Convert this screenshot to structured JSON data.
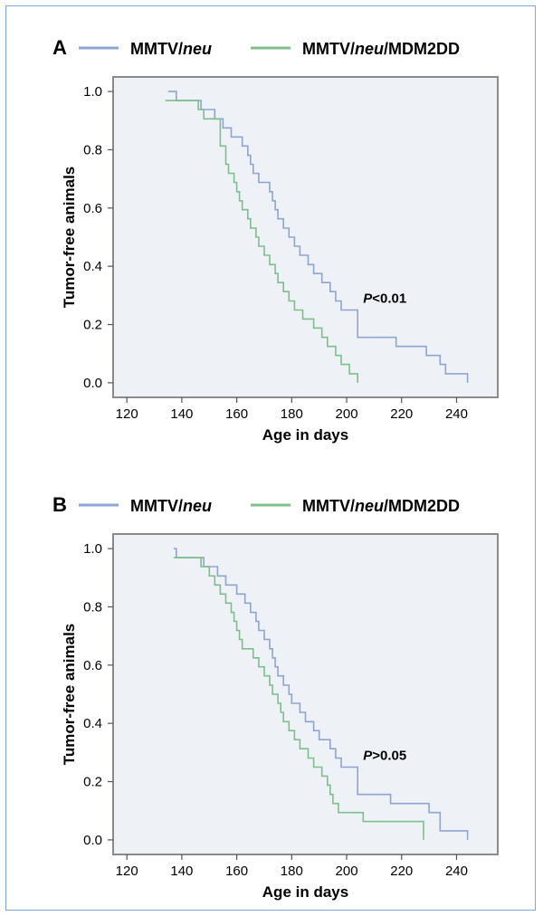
{
  "chart_data": [
    {
      "type": "line",
      "panel_label": "A",
      "xlabel": "Age in days",
      "ylabel": "Tumor-free animals",
      "xlim": [
        115,
        255
      ],
      "ylim": [
        -0.05,
        1.05
      ],
      "xticks": [
        120,
        140,
        160,
        180,
        200,
        220,
        240
      ],
      "yticks": [
        "0.0",
        "0.2",
        "0.4",
        "0.6",
        "0.8",
        "1.0"
      ],
      "grid": false,
      "legend_position": "top",
      "annotation": {
        "italic": "P",
        "rest": "<0.01",
        "x": 206,
        "y": 0.29
      },
      "series": [
        {
          "name_parts": [
            "MMTV/",
            "neu",
            ""
          ],
          "color": "#8ea4d2",
          "points": [
            [
              135,
              1.0
            ],
            [
              138,
              1.0
            ],
            [
              138,
              0.969
            ],
            [
              147,
              0.969
            ],
            [
              147,
              0.938
            ],
            [
              152,
              0.938
            ],
            [
              152,
              0.906
            ],
            [
              155,
              0.906
            ],
            [
              155,
              0.875
            ],
            [
              158,
              0.875
            ],
            [
              158,
              0.844
            ],
            [
              162,
              0.844
            ],
            [
              162,
              0.813
            ],
            [
              164,
              0.813
            ],
            [
              164,
              0.781
            ],
            [
              165,
              0.781
            ],
            [
              165,
              0.75
            ],
            [
              166,
              0.75
            ],
            [
              166,
              0.719
            ],
            [
              168,
              0.719
            ],
            [
              168,
              0.688
            ],
            [
              172,
              0.688
            ],
            [
              172,
              0.656
            ],
            [
              173,
              0.656
            ],
            [
              173,
              0.625
            ],
            [
              174,
              0.625
            ],
            [
              174,
              0.594
            ],
            [
              175,
              0.594
            ],
            [
              175,
              0.563
            ],
            [
              177,
              0.563
            ],
            [
              177,
              0.531
            ],
            [
              179,
              0.531
            ],
            [
              179,
              0.5
            ],
            [
              181,
              0.5
            ],
            [
              181,
              0.469
            ],
            [
              183,
              0.469
            ],
            [
              183,
              0.438
            ],
            [
              186,
              0.438
            ],
            [
              186,
              0.406
            ],
            [
              188,
              0.406
            ],
            [
              188,
              0.375
            ],
            [
              191,
              0.375
            ],
            [
              191,
              0.344
            ],
            [
              194,
              0.344
            ],
            [
              194,
              0.313
            ],
            [
              196,
              0.313
            ],
            [
              196,
              0.281
            ],
            [
              198,
              0.281
            ],
            [
              198,
              0.25
            ],
            [
              204,
              0.25
            ],
            [
              204,
              0.156
            ],
            [
              218,
              0.156
            ],
            [
              218,
              0.125
            ],
            [
              229,
              0.125
            ],
            [
              229,
              0.094
            ],
            [
              234,
              0.094
            ],
            [
              234,
              0.063
            ],
            [
              236,
              0.063
            ],
            [
              236,
              0.031
            ],
            [
              244,
              0.031
            ],
            [
              244,
              0.0
            ]
          ]
        },
        {
          "name_parts": [
            "MMTV/",
            "neu",
            "/MDM2DD"
          ],
          "color": "#7dbf8a",
          "points": [
            [
              134,
              0.969
            ],
            [
              146,
              0.969
            ],
            [
              146,
              0.938
            ],
            [
              148,
              0.938
            ],
            [
              148,
              0.906
            ],
            [
              154,
              0.906
            ],
            [
              154,
              0.813
            ],
            [
              156,
              0.813
            ],
            [
              156,
              0.75
            ],
            [
              157,
              0.75
            ],
            [
              157,
              0.719
            ],
            [
              159,
              0.719
            ],
            [
              159,
              0.688
            ],
            [
              160,
              0.688
            ],
            [
              160,
              0.656
            ],
            [
              161,
              0.656
            ],
            [
              161,
              0.625
            ],
            [
              162,
              0.625
            ],
            [
              162,
              0.594
            ],
            [
              164,
              0.594
            ],
            [
              164,
              0.563
            ],
            [
              165,
              0.563
            ],
            [
              165,
              0.531
            ],
            [
              167,
              0.531
            ],
            [
              167,
              0.5
            ],
            [
              168,
              0.5
            ],
            [
              168,
              0.469
            ],
            [
              170,
              0.469
            ],
            [
              170,
              0.438
            ],
            [
              172,
              0.438
            ],
            [
              172,
              0.406
            ],
            [
              174,
              0.406
            ],
            [
              174,
              0.375
            ],
            [
              175,
              0.375
            ],
            [
              175,
              0.344
            ],
            [
              177,
              0.344
            ],
            [
              177,
              0.313
            ],
            [
              179,
              0.313
            ],
            [
              179,
              0.281
            ],
            [
              181,
              0.281
            ],
            [
              181,
              0.25
            ],
            [
              184,
              0.25
            ],
            [
              184,
              0.219
            ],
            [
              188,
              0.219
            ],
            [
              188,
              0.188
            ],
            [
              191,
              0.188
            ],
            [
              191,
              0.156
            ],
            [
              193,
              0.156
            ],
            [
              193,
              0.125
            ],
            [
              196,
              0.125
            ],
            [
              196,
              0.094
            ],
            [
              198,
              0.094
            ],
            [
              198,
              0.063
            ],
            [
              201,
              0.063
            ],
            [
              201,
              0.031
            ],
            [
              204,
              0.031
            ],
            [
              204,
              0.0
            ]
          ]
        }
      ]
    },
    {
      "type": "line",
      "panel_label": "B",
      "xlabel": "Age in days",
      "ylabel": "Tumor-free animals",
      "xlim": [
        115,
        255
      ],
      "ylim": [
        -0.05,
        1.05
      ],
      "xticks": [
        120,
        140,
        160,
        180,
        200,
        220,
        240
      ],
      "yticks": [
        "0.0",
        "0.2",
        "0.4",
        "0.6",
        "0.8",
        "1.0"
      ],
      "grid": false,
      "legend_position": "top",
      "annotation": {
        "italic": "P",
        "rest": ">0.05",
        "x": 206,
        "y": 0.29
      },
      "series": [
        {
          "name_parts": [
            "MMTV/",
            "neu",
            ""
          ],
          "color": "#8ea4d2",
          "points": [
            [
              137,
              1.0
            ],
            [
              138,
              1.0
            ],
            [
              138,
              0.969
            ],
            [
              148,
              0.969
            ],
            [
              148,
              0.938
            ],
            [
              153,
              0.938
            ],
            [
              153,
              0.906
            ],
            [
              156,
              0.906
            ],
            [
              156,
              0.875
            ],
            [
              160,
              0.875
            ],
            [
              160,
              0.844
            ],
            [
              163,
              0.844
            ],
            [
              163,
              0.813
            ],
            [
              165,
              0.813
            ],
            [
              165,
              0.781
            ],
            [
              167,
              0.781
            ],
            [
              167,
              0.75
            ],
            [
              168,
              0.75
            ],
            [
              168,
              0.719
            ],
            [
              170,
              0.719
            ],
            [
              170,
              0.688
            ],
            [
              172,
              0.688
            ],
            [
              172,
              0.656
            ],
            [
              173,
              0.656
            ],
            [
              173,
              0.625
            ],
            [
              174,
              0.625
            ],
            [
              174,
              0.594
            ],
            [
              175,
              0.594
            ],
            [
              175,
              0.563
            ],
            [
              177,
              0.563
            ],
            [
              177,
              0.531
            ],
            [
              179,
              0.531
            ],
            [
              179,
              0.5
            ],
            [
              180,
              0.5
            ],
            [
              180,
              0.469
            ],
            [
              183,
              0.469
            ],
            [
              183,
              0.438
            ],
            [
              185,
              0.438
            ],
            [
              185,
              0.406
            ],
            [
              188,
              0.406
            ],
            [
              188,
              0.375
            ],
            [
              190,
              0.375
            ],
            [
              190,
              0.344
            ],
            [
              194,
              0.344
            ],
            [
              194,
              0.313
            ],
            [
              196,
              0.313
            ],
            [
              196,
              0.281
            ],
            [
              198,
              0.281
            ],
            [
              198,
              0.25
            ],
            [
              204,
              0.25
            ],
            [
              204,
              0.156
            ],
            [
              216,
              0.156
            ],
            [
              216,
              0.125
            ],
            [
              230,
              0.125
            ],
            [
              230,
              0.094
            ],
            [
              234,
              0.094
            ],
            [
              234,
              0.031
            ],
            [
              244,
              0.031
            ],
            [
              244,
              0.0
            ]
          ]
        },
        {
          "name_parts": [
            "MMTV/",
            "neu",
            "/MDM2DD"
          ],
          "color": "#7dbf8a",
          "points": [
            [
              137,
              0.969
            ],
            [
              147,
              0.969
            ],
            [
              147,
              0.938
            ],
            [
              150,
              0.938
            ],
            [
              150,
              0.906
            ],
            [
              152,
              0.906
            ],
            [
              152,
              0.875
            ],
            [
              154,
              0.875
            ],
            [
              154,
              0.844
            ],
            [
              156,
              0.844
            ],
            [
              156,
              0.813
            ],
            [
              158,
              0.813
            ],
            [
              158,
              0.781
            ],
            [
              159,
              0.781
            ],
            [
              159,
              0.75
            ],
            [
              160,
              0.75
            ],
            [
              160,
              0.719
            ],
            [
              161,
              0.719
            ],
            [
              161,
              0.688
            ],
            [
              162,
              0.688
            ],
            [
              162,
              0.656
            ],
            [
              166,
              0.656
            ],
            [
              166,
              0.625
            ],
            [
              168,
              0.625
            ],
            [
              168,
              0.594
            ],
            [
              170,
              0.594
            ],
            [
              170,
              0.563
            ],
            [
              172,
              0.563
            ],
            [
              172,
              0.531
            ],
            [
              173,
              0.531
            ],
            [
              173,
              0.5
            ],
            [
              175,
              0.5
            ],
            [
              175,
              0.469
            ],
            [
              176,
              0.469
            ],
            [
              176,
              0.438
            ],
            [
              177,
              0.438
            ],
            [
              177,
              0.406
            ],
            [
              179,
              0.406
            ],
            [
              179,
              0.375
            ],
            [
              181,
              0.375
            ],
            [
              181,
              0.344
            ],
            [
              183,
              0.344
            ],
            [
              183,
              0.313
            ],
            [
              186,
              0.313
            ],
            [
              186,
              0.281
            ],
            [
              188,
              0.281
            ],
            [
              188,
              0.25
            ],
            [
              191,
              0.25
            ],
            [
              191,
              0.219
            ],
            [
              193,
              0.219
            ],
            [
              193,
              0.188
            ],
            [
              194,
              0.188
            ],
            [
              194,
              0.156
            ],
            [
              195,
              0.156
            ],
            [
              195,
              0.125
            ],
            [
              197,
              0.125
            ],
            [
              197,
              0.094
            ],
            [
              206,
              0.094
            ],
            [
              206,
              0.063
            ],
            [
              228,
              0.063
            ],
            [
              228,
              0.0
            ]
          ]
        }
      ]
    }
  ],
  "colors": {
    "plot_background": "#eef2f6",
    "axes_frame": "#8a8a8a",
    "figure_border": "#7ea9d2"
  }
}
